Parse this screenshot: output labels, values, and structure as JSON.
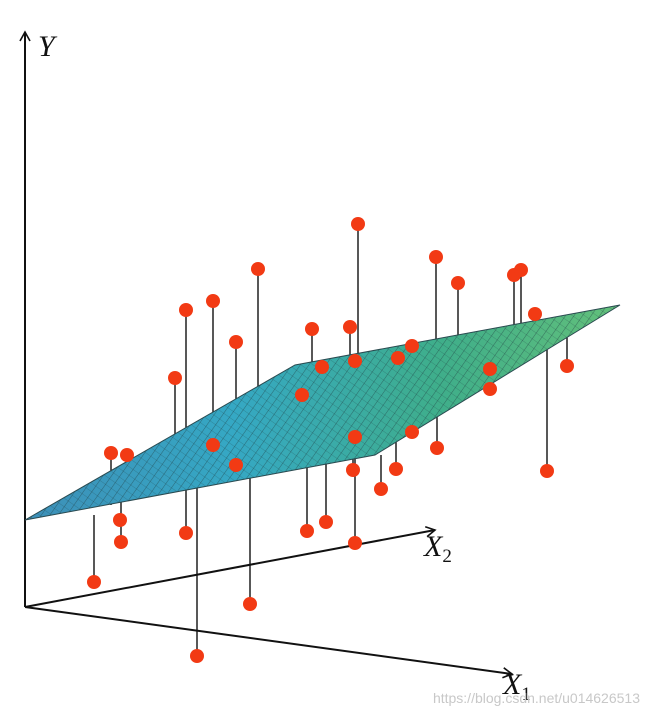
{
  "axes": {
    "y": "Y",
    "x1": "X",
    "x1_sub": "1",
    "x2": "X",
    "x2_sub": "2"
  },
  "watermark": "https://blog.csdn.net/u014626513"
}
